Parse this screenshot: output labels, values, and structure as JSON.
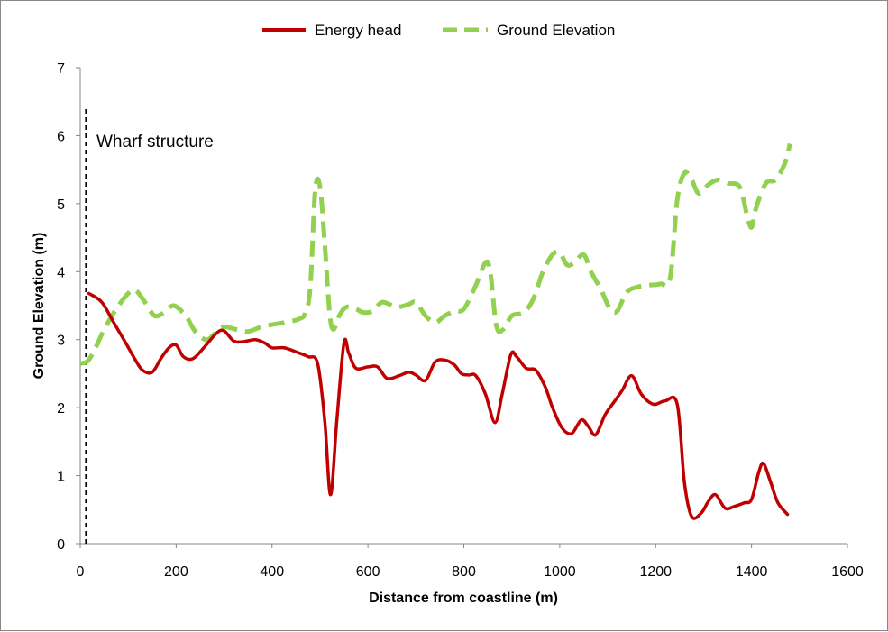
{
  "chart_data": {
    "type": "line",
    "title": "",
    "xlabel": "Distance from coastline (m)",
    "ylabel": "Ground Elevation  (m)",
    "xlim": [
      0,
      1600
    ],
    "ylim": [
      0,
      7
    ],
    "xticks": [
      0,
      200,
      400,
      600,
      800,
      1000,
      1200,
      1400,
      1600
    ],
    "yticks": [
      0,
      1,
      2,
      3,
      4,
      5,
      6,
      7
    ],
    "grid": false,
    "legend_position": "top",
    "annotation": {
      "text": "Wharf structure",
      "x": 12,
      "y_range": [
        0,
        6.45
      ]
    },
    "series": [
      {
        "name": "Energy head",
        "color": "#c00000",
        "style": "solid",
        "points": [
          [
            18,
            3.68
          ],
          [
            45,
            3.55
          ],
          [
            70,
            3.25
          ],
          [
            95,
            2.95
          ],
          [
            115,
            2.7
          ],
          [
            130,
            2.55
          ],
          [
            150,
            2.52
          ],
          [
            168,
            2.72
          ],
          [
            185,
            2.88
          ],
          [
            200,
            2.92
          ],
          [
            215,
            2.75
          ],
          [
            235,
            2.72
          ],
          [
            260,
            2.9
          ],
          [
            285,
            3.1
          ],
          [
            300,
            3.13
          ],
          [
            320,
            2.98
          ],
          [
            340,
            2.97
          ],
          [
            365,
            3.0
          ],
          [
            385,
            2.95
          ],
          [
            400,
            2.88
          ],
          [
            425,
            2.88
          ],
          [
            450,
            2.82
          ],
          [
            475,
            2.75
          ],
          [
            495,
            2.65
          ],
          [
            510,
            1.8
          ],
          [
            522,
            0.72
          ],
          [
            535,
            1.8
          ],
          [
            550,
            2.95
          ],
          [
            560,
            2.8
          ],
          [
            575,
            2.58
          ],
          [
            600,
            2.6
          ],
          [
            620,
            2.6
          ],
          [
            640,
            2.43
          ],
          [
            665,
            2.47
          ],
          [
            685,
            2.52
          ],
          [
            700,
            2.48
          ],
          [
            720,
            2.4
          ],
          [
            740,
            2.67
          ],
          [
            760,
            2.7
          ],
          [
            780,
            2.63
          ],
          [
            795,
            2.5
          ],
          [
            810,
            2.48
          ],
          [
            825,
            2.47
          ],
          [
            845,
            2.2
          ],
          [
            865,
            1.78
          ],
          [
            880,
            2.2
          ],
          [
            898,
            2.78
          ],
          [
            910,
            2.75
          ],
          [
            930,
            2.58
          ],
          [
            950,
            2.55
          ],
          [
            970,
            2.3
          ],
          [
            985,
            2.0
          ],
          [
            1005,
            1.7
          ],
          [
            1025,
            1.62
          ],
          [
            1045,
            1.82
          ],
          [
            1060,
            1.72
          ],
          [
            1075,
            1.6
          ],
          [
            1095,
            1.9
          ],
          [
            1115,
            2.1
          ],
          [
            1130,
            2.25
          ],
          [
            1150,
            2.47
          ],
          [
            1170,
            2.2
          ],
          [
            1195,
            2.05
          ],
          [
            1220,
            2.1
          ],
          [
            1245,
            2.05
          ],
          [
            1260,
            0.9
          ],
          [
            1275,
            0.4
          ],
          [
            1295,
            0.45
          ],
          [
            1310,
            0.62
          ],
          [
            1325,
            0.72
          ],
          [
            1345,
            0.52
          ],
          [
            1365,
            0.55
          ],
          [
            1385,
            0.6
          ],
          [
            1400,
            0.65
          ],
          [
            1415,
            1.05
          ],
          [
            1425,
            1.18
          ],
          [
            1440,
            0.9
          ],
          [
            1455,
            0.6
          ],
          [
            1475,
            0.43
          ]
        ]
      },
      {
        "name": "Ground Elevation",
        "color": "#92d050",
        "style": "dashed",
        "points": [
          [
            0,
            2.65
          ],
          [
            15,
            2.68
          ],
          [
            30,
            2.85
          ],
          [
            50,
            3.15
          ],
          [
            75,
            3.45
          ],
          [
            100,
            3.68
          ],
          [
            115,
            3.73
          ],
          [
            135,
            3.55
          ],
          [
            155,
            3.35
          ],
          [
            175,
            3.4
          ],
          [
            195,
            3.5
          ],
          [
            220,
            3.35
          ],
          [
            240,
            3.12
          ],
          [
            265,
            3.0
          ],
          [
            295,
            3.18
          ],
          [
            325,
            3.15
          ],
          [
            350,
            3.12
          ],
          [
            375,
            3.18
          ],
          [
            400,
            3.22
          ],
          [
            425,
            3.25
          ],
          [
            455,
            3.3
          ],
          [
            470,
            3.4
          ],
          [
            480,
            3.8
          ],
          [
            490,
            5.2
          ],
          [
            500,
            5.25
          ],
          [
            510,
            4.4
          ],
          [
            520,
            3.4
          ],
          [
            528,
            3.15
          ],
          [
            540,
            3.35
          ],
          [
            555,
            3.48
          ],
          [
            575,
            3.45
          ],
          [
            590,
            3.4
          ],
          [
            610,
            3.42
          ],
          [
            630,
            3.55
          ],
          [
            660,
            3.48
          ],
          [
            685,
            3.52
          ],
          [
            700,
            3.55
          ],
          [
            720,
            3.35
          ],
          [
            740,
            3.25
          ],
          [
            760,
            3.35
          ],
          [
            780,
            3.42
          ],
          [
            800,
            3.45
          ],
          [
            825,
            3.8
          ],
          [
            845,
            4.13
          ],
          [
            855,
            4.0
          ],
          [
            868,
            3.2
          ],
          [
            882,
            3.15
          ],
          [
            900,
            3.35
          ],
          [
            925,
            3.4
          ],
          [
            945,
            3.6
          ],
          [
            965,
            4.0
          ],
          [
            985,
            4.25
          ],
          [
            1000,
            4.28
          ],
          [
            1015,
            4.1
          ],
          [
            1030,
            4.13
          ],
          [
            1050,
            4.25
          ],
          [
            1065,
            4.0
          ],
          [
            1085,
            3.75
          ],
          [
            1105,
            3.45
          ],
          [
            1120,
            3.42
          ],
          [
            1140,
            3.7
          ],
          [
            1165,
            3.78
          ],
          [
            1185,
            3.8
          ],
          [
            1210,
            3.82
          ],
          [
            1230,
            3.9
          ],
          [
            1245,
            5.05
          ],
          [
            1260,
            5.45
          ],
          [
            1275,
            5.35
          ],
          [
            1290,
            5.15
          ],
          [
            1310,
            5.28
          ],
          [
            1330,
            5.35
          ],
          [
            1350,
            5.3
          ],
          [
            1375,
            5.25
          ],
          [
            1390,
            4.85
          ],
          [
            1400,
            4.65
          ],
          [
            1410,
            4.95
          ],
          [
            1430,
            5.3
          ],
          [
            1450,
            5.35
          ],
          [
            1470,
            5.6
          ],
          [
            1480,
            5.88
          ]
        ]
      }
    ]
  }
}
